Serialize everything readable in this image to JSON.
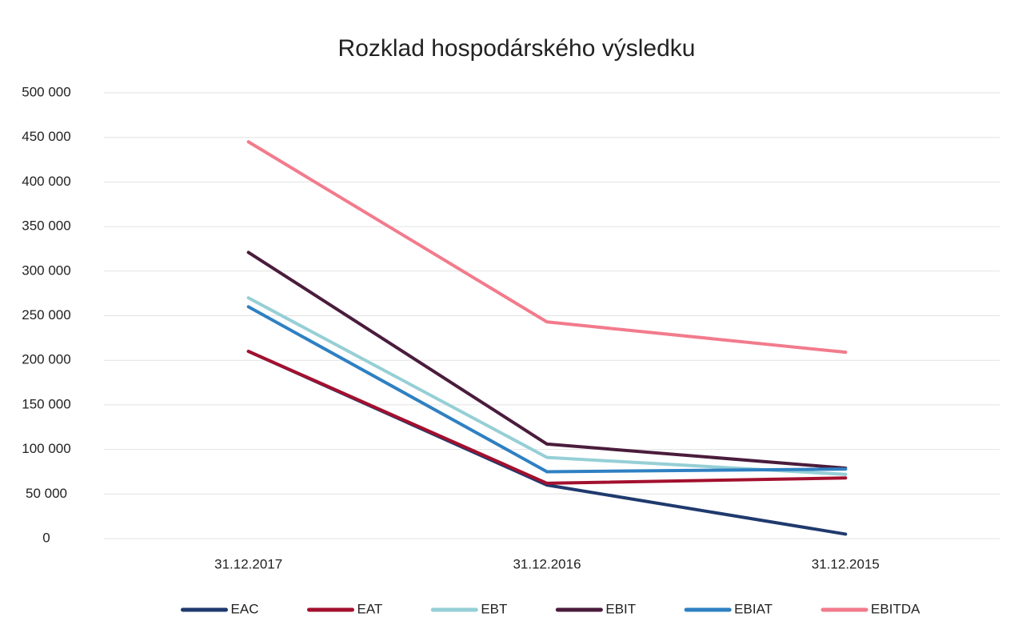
{
  "chart_data": {
    "type": "line",
    "title": "Rozklad hospodárského výsledku",
    "categories": [
      "31.12.2017",
      "31.12.2016",
      "31.12.2015"
    ],
    "series": [
      {
        "name": "EAC",
        "color": "#1f3a6e",
        "values": [
          210000,
          60000,
          5000
        ]
      },
      {
        "name": "EAT",
        "color": "#a3102e",
        "values": [
          210000,
          62000,
          68000
        ]
      },
      {
        "name": "EBT",
        "color": "#96cfd6",
        "values": [
          270000,
          91000,
          72000
        ]
      },
      {
        "name": "EBIT",
        "color": "#4a1c3c",
        "values": [
          321000,
          106000,
          79000
        ]
      },
      {
        "name": "EBIAT",
        "color": "#2f80c2",
        "values": [
          260000,
          75000,
          78000
        ]
      },
      {
        "name": "EBITDA",
        "color": "#f27b8c",
        "values": [
          445000,
          243000,
          209000
        ]
      }
    ],
    "ylim": [
      0,
      500000
    ],
    "yticks": [
      0,
      {
        "value": 50000,
        "label": "50 000"
      },
      {
        "value": 100000,
        "label": "100 000"
      },
      {
        "value": 150000,
        "label": "150 000"
      },
      {
        "value": 200000,
        "label": "200 000"
      },
      {
        "value": 250000,
        "label": "250 000"
      },
      {
        "value": 300000,
        "label": "300 000"
      },
      {
        "value": 350000,
        "label": "350 000"
      },
      {
        "value": 400000,
        "label": "400 000"
      },
      {
        "value": 450000,
        "label": "450 000"
      },
      {
        "value": 500000,
        "label": "500 000"
      }
    ],
    "grid": true,
    "legend": "bottom"
  }
}
